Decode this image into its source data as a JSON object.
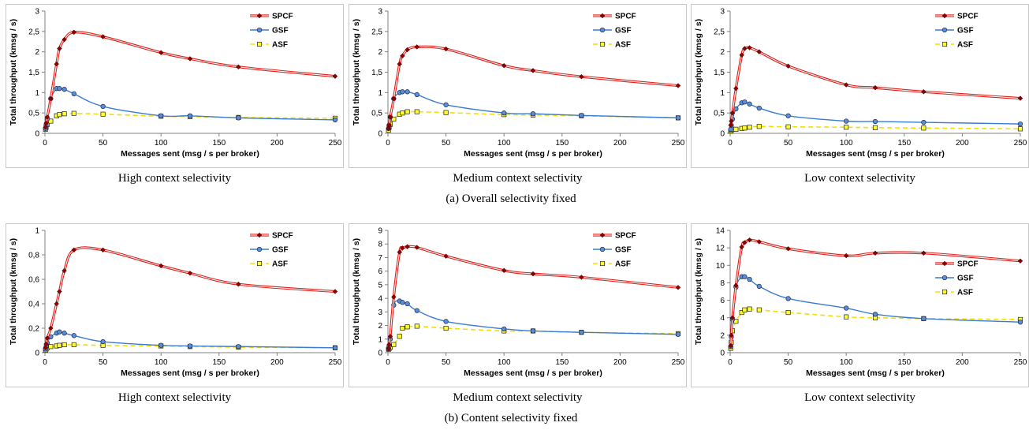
{
  "row_captions": [
    "(a) Overall selectivity fixed",
    "(b) Content selectivity fixed"
  ],
  "colors": {
    "SPCF": "#e0201b",
    "SPCF_marker": "#8b0000",
    "GSF": "#3a7bd5",
    "GSF_marker_fill": "#5b8ed6",
    "ASF": "#f2e000",
    "ASF_marker_fill": "#ffff33"
  },
  "chart_data": [
    {
      "type": "line",
      "caption": "High context selectivity",
      "xlabel": "Messages sent (msg / s per broker)",
      "ylabel": "Total throughput (kmsg / s)",
      "xlim": [
        0,
        250
      ],
      "xticks": [
        0,
        50,
        100,
        150,
        200,
        250
      ],
      "ylim": [
        0,
        3
      ],
      "yticks": [
        0,
        0.5,
        1,
        1.5,
        2,
        2.5,
        3
      ],
      "ytick_labels": [
        "0",
        "0,5",
        "1",
        "1,5",
        "2",
        "2,5",
        "3"
      ],
      "grid": false,
      "legend": "top-right",
      "x": [
        0.5,
        1,
        2,
        5,
        10,
        12.5,
        16.7,
        25,
        50,
        100,
        125,
        166.7,
        250
      ],
      "series": [
        {
          "name": "SPCF",
          "values": [
            0.15,
            0.25,
            0.4,
            0.85,
            1.7,
            2.08,
            2.3,
            2.48,
            2.37,
            1.98,
            1.83,
            1.63,
            1.4
          ]
        },
        {
          "name": "GSF",
          "values": [
            0.12,
            0.2,
            0.35,
            0.85,
            1.1,
            1.1,
            1.08,
            0.97,
            0.66,
            0.43,
            0.43,
            0.38,
            0.33
          ]
        },
        {
          "name": "ASF",
          "values": [
            0.1,
            0.15,
            0.22,
            0.3,
            0.43,
            0.46,
            0.48,
            0.49,
            0.47,
            0.42,
            0.41,
            0.39,
            0.37
          ]
        }
      ]
    },
    {
      "type": "line",
      "caption": "Medium context selectivity",
      "xlabel": "Messages sent (msg / s per broker)",
      "ylabel": "Total throughput (kmsg / s)",
      "xlim": [
        0,
        250
      ],
      "xticks": [
        0,
        50,
        100,
        150,
        200,
        250
      ],
      "ylim": [
        0,
        3
      ],
      "yticks": [
        0,
        0.5,
        1,
        1.5,
        2,
        2.5,
        3
      ],
      "ytick_labels": [
        "0",
        "0,5",
        "1",
        "1,5",
        "2",
        "2,5",
        "3"
      ],
      "grid": false,
      "legend": "top-right",
      "x": [
        0.5,
        1,
        2,
        5,
        10,
        12.5,
        16.7,
        25,
        50,
        100,
        125,
        166.7,
        250
      ],
      "series": [
        {
          "name": "SPCF",
          "values": [
            0.12,
            0.2,
            0.4,
            0.85,
            1.7,
            1.9,
            2.05,
            2.12,
            2.07,
            1.66,
            1.54,
            1.39,
            1.17
          ]
        },
        {
          "name": "GSF",
          "values": [
            0.12,
            0.2,
            0.4,
            0.85,
            1.0,
            1.02,
            1.02,
            0.95,
            0.7,
            0.5,
            0.48,
            0.44,
            0.38
          ]
        },
        {
          "name": "ASF",
          "values": [
            0.08,
            0.15,
            0.22,
            0.35,
            0.47,
            0.5,
            0.53,
            0.53,
            0.51,
            0.46,
            0.45,
            0.43,
            0.38
          ]
        }
      ]
    },
    {
      "type": "line",
      "caption": "Low context selectivity",
      "xlabel": "Messages sent (msg / s per broker)",
      "ylabel": "Total throughput (kmsg / s)",
      "xlim": [
        0,
        250
      ],
      "xticks": [
        0,
        50,
        100,
        150,
        200,
        250
      ],
      "ylim": [
        0,
        3
      ],
      "yticks": [
        0,
        0.5,
        1,
        1.5,
        2,
        2.5,
        3
      ],
      "ytick_labels": [
        "0",
        "0,5",
        "1",
        "1,5",
        "2",
        "2,5",
        "3"
      ],
      "grid": false,
      "legend": "top-right",
      "x": [
        0.5,
        1,
        2,
        5,
        10,
        12.5,
        16.7,
        25,
        50,
        100,
        125,
        166.7,
        250
      ],
      "series": [
        {
          "name": "SPCF",
          "values": [
            0.2,
            0.3,
            0.5,
            1.1,
            1.92,
            2.08,
            2.1,
            2.0,
            1.65,
            1.19,
            1.12,
            1.02,
            0.86
          ]
        },
        {
          "name": "GSF",
          "values": [
            0.1,
            0.2,
            0.35,
            0.6,
            0.75,
            0.77,
            0.72,
            0.62,
            0.43,
            0.3,
            0.29,
            0.27,
            0.23
          ]
        },
        {
          "name": "ASF",
          "values": [
            0.05,
            0.08,
            0.1,
            0.1,
            0.12,
            0.13,
            0.15,
            0.17,
            0.16,
            0.15,
            0.14,
            0.13,
            0.11
          ]
        }
      ]
    },
    {
      "type": "line",
      "caption": "High context selectivity",
      "xlabel": "Messages sent (msg / s per broker)",
      "ylabel": "Total throughput (kmsg / s)",
      "xlim": [
        0,
        250
      ],
      "xticks": [
        0,
        50,
        100,
        150,
        200,
        250
      ],
      "ylim": [
        0,
        1
      ],
      "yticks": [
        0,
        0.2,
        0.4,
        0.6,
        0.8,
        1
      ],
      "ytick_labels": [
        "0",
        "0,2",
        "0,4",
        "0,6",
        "0,8",
        "1"
      ],
      "grid": false,
      "legend": "top-right",
      "x": [
        0.5,
        1,
        2,
        5,
        10,
        12.5,
        16.7,
        25,
        50,
        100,
        125,
        166.7,
        250
      ],
      "series": [
        {
          "name": "SPCF",
          "values": [
            0.04,
            0.07,
            0.12,
            0.2,
            0.4,
            0.5,
            0.67,
            0.84,
            0.84,
            0.71,
            0.65,
            0.56,
            0.5
          ]
        },
        {
          "name": "GSF",
          "values": [
            0.03,
            0.05,
            0.08,
            0.13,
            0.16,
            0.17,
            0.16,
            0.14,
            0.09,
            0.06,
            0.055,
            0.05,
            0.04
          ]
        },
        {
          "name": "ASF",
          "values": [
            0.02,
            0.03,
            0.04,
            0.05,
            0.055,
            0.06,
            0.065,
            0.065,
            0.06,
            0.055,
            0.05,
            0.045,
            0.04
          ]
        }
      ]
    },
    {
      "type": "line",
      "caption": "Medium context selectivity",
      "xlabel": "Messages sent (msg / s per broker)",
      "ylabel": "Total throughput (kmsg / s)",
      "xlim": [
        0,
        250
      ],
      "xticks": [
        0,
        50,
        100,
        150,
        200,
        250
      ],
      "ylim": [
        0,
        9
      ],
      "yticks": [
        0,
        1,
        2,
        3,
        4,
        5,
        6,
        7,
        8,
        9
      ],
      "ytick_labels": [
        "0",
        "1",
        "2",
        "3",
        "4",
        "5",
        "6",
        "7",
        "8",
        "9"
      ],
      "grid": false,
      "legend": "top-right",
      "x": [
        0.5,
        1,
        2,
        5,
        10,
        12.5,
        16.7,
        25,
        50,
        100,
        125,
        166.7,
        250
      ],
      "series": [
        {
          "name": "SPCF",
          "values": [
            0.3,
            0.6,
            1.2,
            4.1,
            7.4,
            7.7,
            7.8,
            7.75,
            7.1,
            6.05,
            5.8,
            5.55,
            4.8
          ]
        },
        {
          "name": "GSF",
          "values": [
            0.3,
            0.5,
            1.0,
            3.5,
            3.8,
            3.7,
            3.6,
            3.1,
            2.3,
            1.75,
            1.6,
            1.5,
            1.35
          ]
        },
        {
          "name": "ASF",
          "values": [
            0.25,
            0.3,
            0.4,
            0.6,
            1.2,
            1.8,
            1.9,
            1.95,
            1.8,
            1.6,
            1.6,
            1.5,
            1.4
          ]
        }
      ]
    },
    {
      "type": "line",
      "caption": "Low context selectivity",
      "xlabel": "Messages sent (msg / s per broker)",
      "ylabel": "Total throughput (kmsg / s)",
      "xlim": [
        0,
        250
      ],
      "xticks": [
        0,
        50,
        100,
        150,
        200,
        250
      ],
      "ylim": [
        0,
        14
      ],
      "yticks": [
        0,
        2,
        4,
        6,
        8,
        10,
        12,
        14
      ],
      "ytick_labels": [
        "0",
        "2",
        "4",
        "6",
        "8",
        "10",
        "12",
        "14"
      ],
      "grid": false,
      "legend": "right",
      "x": [
        0.5,
        1,
        2,
        5,
        10,
        12.5,
        16.7,
        25,
        50,
        100,
        125,
        166.7,
        250
      ],
      "series": [
        {
          "name": "SPCF",
          "values": [
            0.8,
            2.0,
            4.0,
            7.7,
            12.1,
            12.6,
            12.9,
            12.7,
            11.9,
            11.1,
            11.4,
            11.4,
            10.5
          ]
        },
        {
          "name": "GSF",
          "values": [
            0.7,
            1.8,
            3.8,
            7.5,
            8.7,
            8.7,
            8.4,
            7.6,
            6.2,
            5.1,
            4.4,
            3.9,
            3.5
          ]
        },
        {
          "name": "ASF",
          "values": [
            0.5,
            1.2,
            2.5,
            3.6,
            4.6,
            4.9,
            5.0,
            4.9,
            4.6,
            4.1,
            4.0,
            3.9,
            3.8
          ]
        }
      ]
    }
  ]
}
